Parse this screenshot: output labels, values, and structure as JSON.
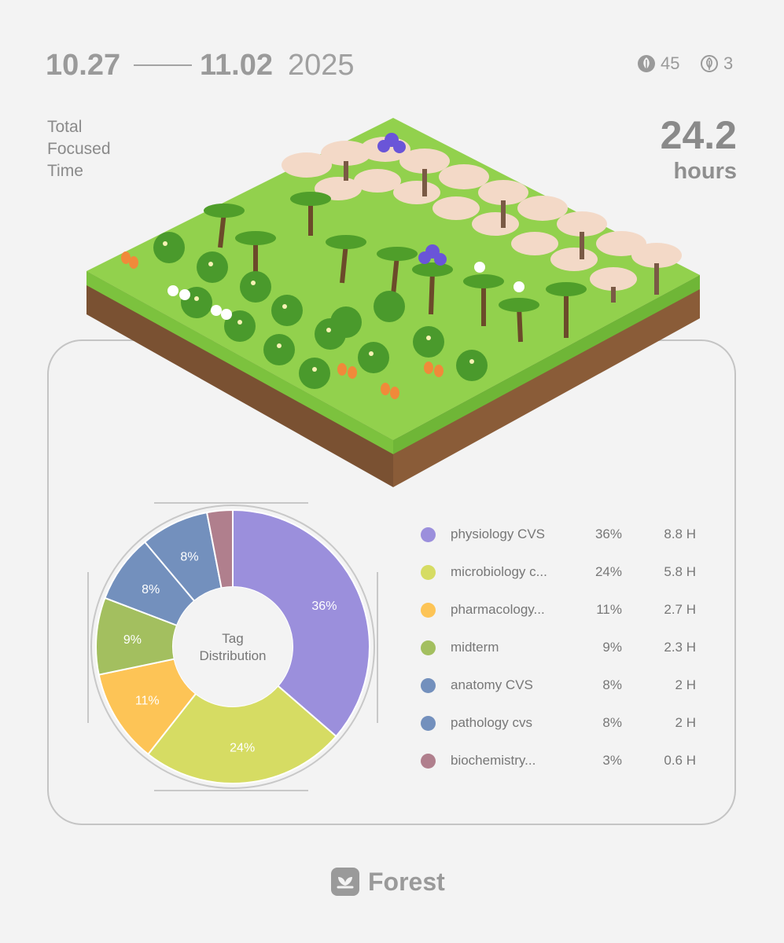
{
  "header": {
    "date_start": "10.27",
    "date_end": "11.02",
    "year": "2025",
    "trees_count": "45",
    "dead_trees_count": "3",
    "icons": {
      "trees": "leaf-icon",
      "dead": "withered-leaf-icon"
    }
  },
  "summary": {
    "label": "Total\nFocused\nTime",
    "hours_value": "24.2",
    "hours_unit": "hours"
  },
  "chart_data": {
    "type": "pie",
    "title": "Tag\nDistribution",
    "slices": [
      {
        "name": "physiology CVS",
        "percent": 36,
        "hours": 8.8,
        "color": "#9b8fdc",
        "label": "36%"
      },
      {
        "name": "microbiology c...",
        "percent": 24,
        "hours": 5.8,
        "color": "#d6dc63",
        "label": "24%"
      },
      {
        "name": "pharmacology...",
        "percent": 11,
        "hours": 2.7,
        "color": "#fdc456",
        "label": "11%"
      },
      {
        "name": "midterm",
        "percent": 9,
        "hours": 2.3,
        "color": "#a3bf5f",
        "label": "9%"
      },
      {
        "name": "anatomy CVS",
        "percent": 8,
        "hours": 2,
        "color": "#7390bd",
        "label": "8%"
      },
      {
        "name": "pathology cvs",
        "percent": 8,
        "hours": 2,
        "color": "#7390bd",
        "label": "8%"
      },
      {
        "name": "biochemistry...",
        "percent": 3,
        "hours": 0.6,
        "color": "#b07f8d",
        "label": ""
      }
    ]
  },
  "legend": [
    {
      "name": "physiology CVS",
      "pct": "36%",
      "hours": "8.8 H",
      "color": "#9b8fdc"
    },
    {
      "name": "microbiology c...",
      "pct": "24%",
      "hours": "5.8 H",
      "color": "#d6dc63"
    },
    {
      "name": "pharmacology...",
      "pct": "11%",
      "hours": "2.7 H",
      "color": "#fdc456"
    },
    {
      "name": "midterm",
      "pct": "9%",
      "hours": "2.3 H",
      "color": "#a3bf5f"
    },
    {
      "name": "anatomy CVS",
      "pct": "8%",
      "hours": "2 H",
      "color": "#7390bd"
    },
    {
      "name": "pathology cvs",
      "pct": "8%",
      "hours": "2 H",
      "color": "#7390bd"
    },
    {
      "name": "biochemistry...",
      "pct": "3%",
      "hours": "0.6 H",
      "color": "#b07f8d"
    }
  ],
  "footer": {
    "brand": "Forest",
    "icon": "forest-logo-icon"
  }
}
